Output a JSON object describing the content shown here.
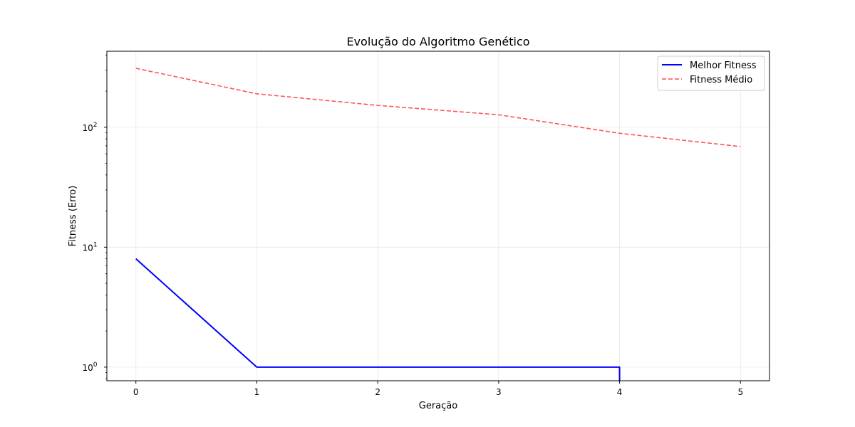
{
  "chart_data": {
    "type": "line",
    "title": "Evolução do Algoritmo Genético",
    "xlabel": "Geração",
    "ylabel": "Fitness (Erro)",
    "yscale": "log",
    "grid": true,
    "legend_position": "top-right",
    "x_ticks": [
      {
        "value": 0,
        "label": "0"
      },
      {
        "value": 1,
        "label": "1"
      },
      {
        "value": 2,
        "label": "2"
      },
      {
        "value": 3,
        "label": "3"
      },
      {
        "value": 4,
        "label": "4"
      },
      {
        "value": 5,
        "label": "5"
      }
    ],
    "y_ticks": [
      {
        "value": 1,
        "base": "10",
        "exp": "0"
      },
      {
        "value": 10,
        "base": "10",
        "exp": "1"
      },
      {
        "value": 100,
        "base": "10",
        "exp": "2"
      }
    ],
    "xlim": [
      -0.24,
      5.24
    ],
    "ylim": [
      0.77,
      430
    ],
    "series": [
      {
        "name": "Melhor Fitness",
        "color": "#0000ff",
        "style": "solid",
        "x": [
          0,
          1,
          2,
          3,
          4,
          4,
          5
        ],
        "y": [
          8,
          1,
          1,
          1,
          1,
          0,
          0
        ]
      },
      {
        "name": "Fitness Médio",
        "color": "#ff4c4c",
        "style": "dashed",
        "x": [
          0,
          1,
          2,
          3,
          4,
          5
        ],
        "y": [
          310,
          190,
          152,
          127,
          89,
          69
        ]
      }
    ]
  }
}
